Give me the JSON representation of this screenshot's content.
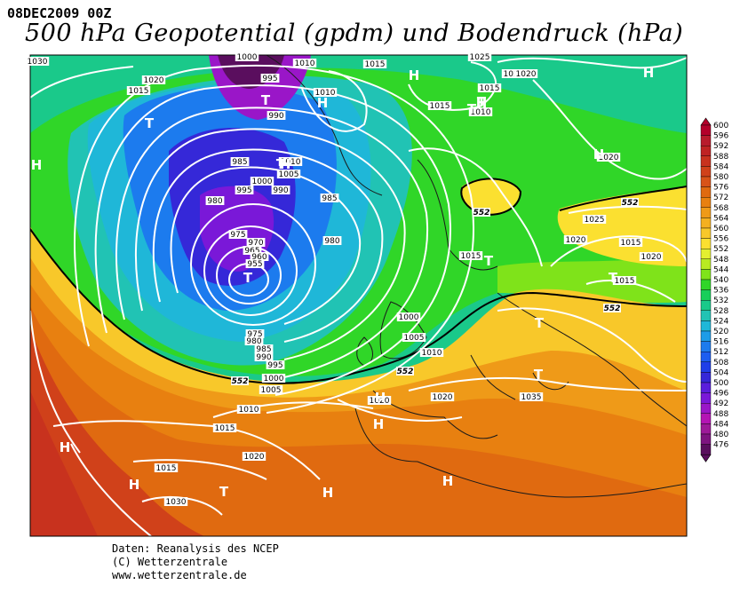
{
  "header": {
    "date": "08DEC2009 00Z",
    "title": "500 hPa Geopotential (gpdm) und Bodendruck (hPa)"
  },
  "credits": {
    "line1": "Daten: Reanalysis des NCEP",
    "line2": "(C) Wetterzentrale",
    "line3": "www.wetterzentrale.de"
  },
  "legend": {
    "levels": [
      "600",
      "596",
      "592",
      "588",
      "584",
      "580",
      "576",
      "572",
      "568",
      "564",
      "560",
      "556",
      "552",
      "548",
      "544",
      "540",
      "536",
      "532",
      "528",
      "524",
      "520",
      "516",
      "512",
      "508",
      "504",
      "500",
      "496",
      "492",
      "488",
      "484",
      "480",
      "476"
    ],
    "colors": [
      "#b3002a",
      "#b81b2c",
      "#bf2323",
      "#c8321e",
      "#d0411a",
      "#d85318",
      "#e06a10",
      "#e88010",
      "#ef9a18",
      "#f4b020",
      "#f8c82a",
      "#fbe030",
      "#e4ef30",
      "#b8ea22",
      "#7fe31a",
      "#30d628",
      "#18cf5a",
      "#1ac98a",
      "#21c3b4",
      "#1fb7d8",
      "#1d9ce8",
      "#1c7bee",
      "#1c5df0",
      "#1f3ee8",
      "#3528d8",
      "#5a1edc",
      "#7a18d8",
      "#9a16c8",
      "#b414b4",
      "#9d1a99",
      "#7e1480",
      "#5a0e5e"
    ]
  },
  "pressure_labels": [
    "1030",
    "1000",
    "1010",
    "1015",
    "1025",
    "1020",
    "1015",
    "1020",
    "995",
    "990",
    "1010",
    "1015",
    "1015",
    "1010",
    "985",
    "1010",
    "1005",
    "1000",
    "990",
    "995",
    "980",
    "985",
    "975",
    "970",
    "965",
    "960",
    "955",
    "980",
    "975",
    "980",
    "985",
    "990",
    "995",
    "1000",
    "1005",
    "1010",
    "1015",
    "1000",
    "1005",
    "1010",
    "1015",
    "1020",
    "1020",
    "1015",
    "1020",
    "1020",
    "1020",
    "1035",
    "1030",
    "1025",
    "1020",
    "1015",
    "1020",
    "1015"
  ],
  "height_labels": [
    "552",
    "552",
    "552",
    "552",
    "552"
  ],
  "high_markers": [
    "H",
    "H",
    "H",
    "H",
    "H",
    "H",
    "H",
    "H",
    "H",
    "H",
    "H",
    "H",
    "H"
  ],
  "low_markers": [
    "T",
    "T",
    "T",
    "T",
    "T",
    "T",
    "T",
    "T",
    "T",
    "T",
    "T"
  ]
}
